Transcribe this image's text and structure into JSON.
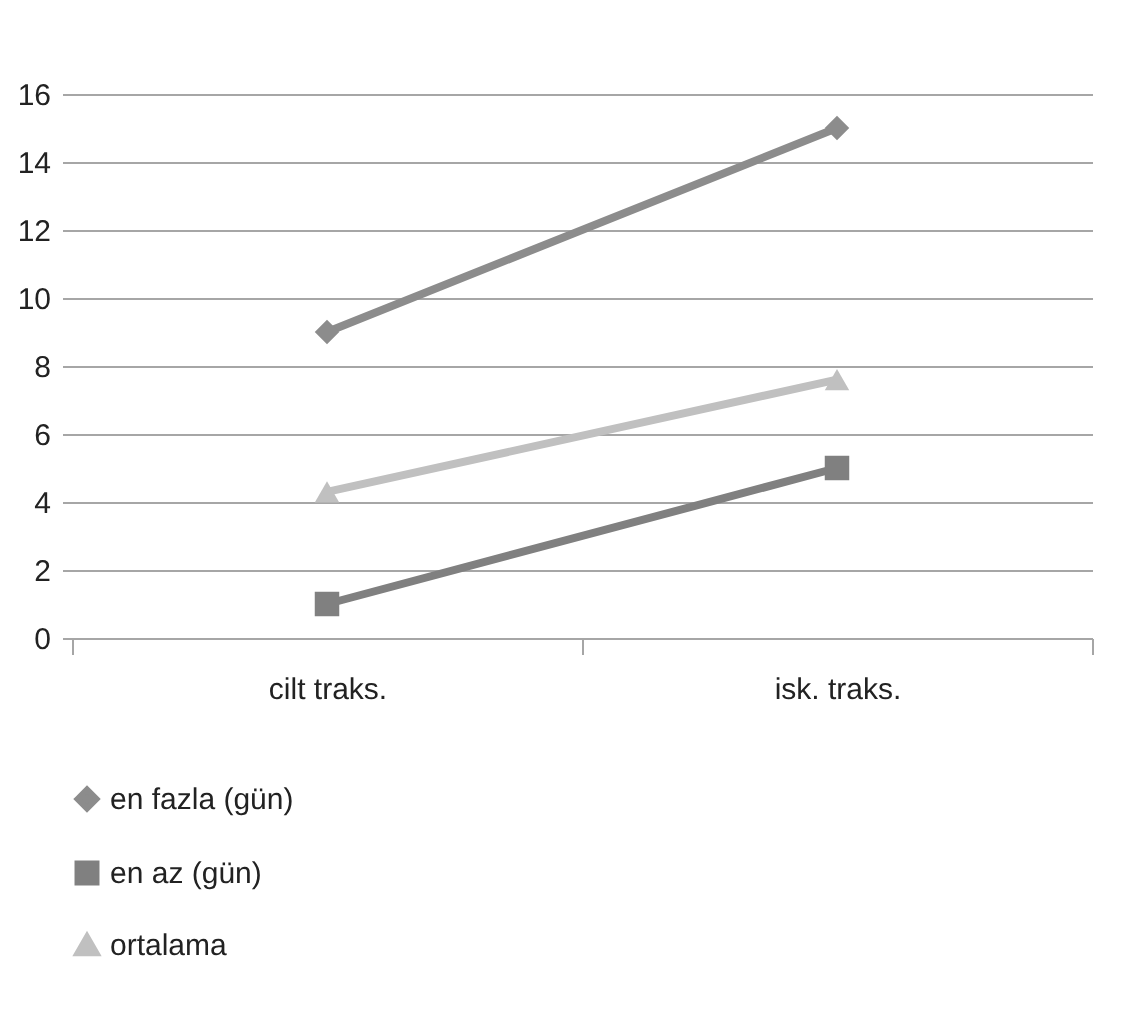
{
  "chart_data": {
    "type": "line",
    "categories": [
      "cilt traks.",
      "isk. traks."
    ],
    "series": [
      {
        "name": "en fazla (gün)",
        "color": "#8c8c8c",
        "marker": "diamond",
        "values": [
          9,
          15
        ]
      },
      {
        "name": "en az (gün)",
        "color": "#808080",
        "marker": "square",
        "values": [
          1,
          5
        ]
      },
      {
        "name": "ortalama",
        "color": "#c0c0c0",
        "marker": "triangle",
        "values": [
          4.3,
          7.6
        ]
      }
    ],
    "ylim": [
      0,
      16
    ],
    "yticks": [
      0,
      2,
      4,
      6,
      8,
      10,
      12,
      14,
      16
    ],
    "grid": "y",
    "legend": "bottom",
    "line_style": "solid"
  }
}
